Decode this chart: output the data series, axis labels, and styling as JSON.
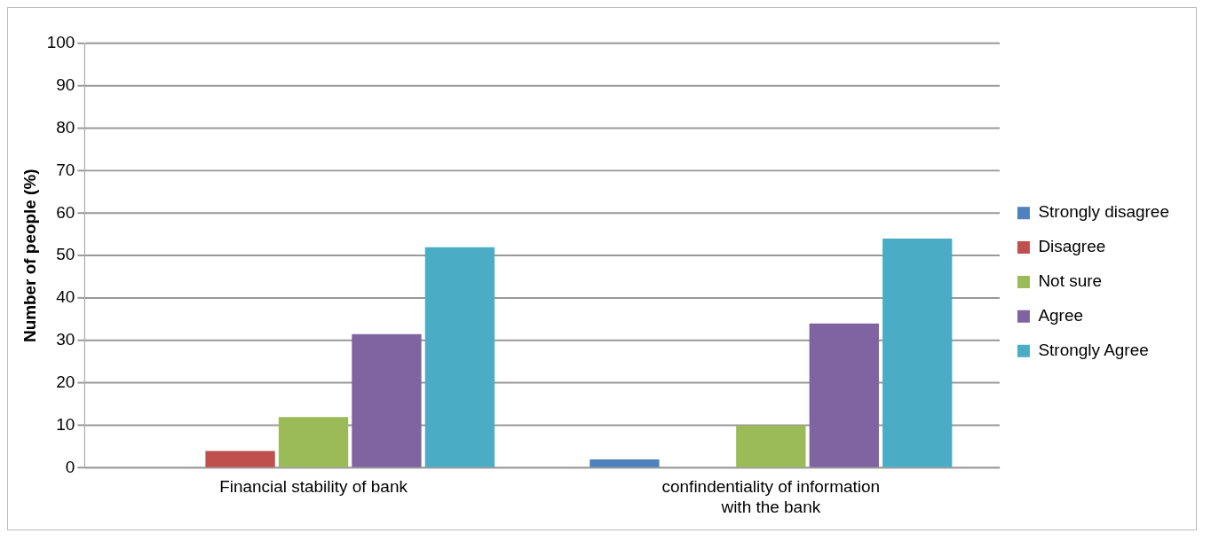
{
  "chart_data": {
    "type": "bar",
    "ylabel": "Number of people (%)",
    "categories": [
      "Financial stability of bank",
      "confindentiality of information with the bank"
    ],
    "series": [
      {
        "name": "Strongly disagree",
        "color": "#4f81bd",
        "values": [
          0,
          2
        ]
      },
      {
        "name": "Disagree",
        "color": "#c0504d",
        "values": [
          4,
          0
        ]
      },
      {
        "name": "Not sure",
        "color": "#9bbb59",
        "values": [
          12,
          10
        ]
      },
      {
        "name": "Agree",
        "color": "#8064a2",
        "values": [
          31.5,
          34
        ]
      },
      {
        "name": "Strongly Agree",
        "color": "#4bacc6",
        "values": [
          52,
          54
        ]
      }
    ],
    "ylim": [
      0,
      100
    ],
    "yticks": [
      0,
      10,
      20,
      30,
      40,
      50,
      60,
      70,
      80,
      90,
      100
    ],
    "grid": "y",
    "legend": "right"
  }
}
